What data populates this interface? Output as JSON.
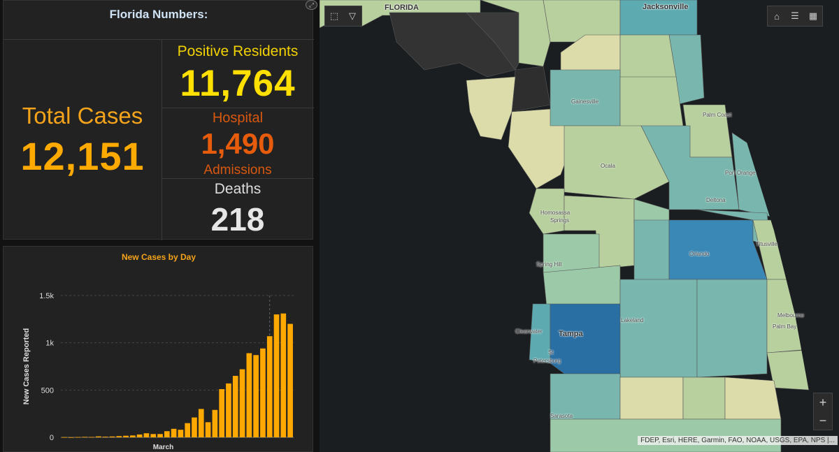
{
  "stats": {
    "title": "Florida Numbers:",
    "total_label": "Total Cases",
    "total_value": "12,151",
    "positive_label": "Positive Residents",
    "positive_value": "11,764",
    "hospital_label": "Hospital",
    "hospital_value": "1,490",
    "hospital_label2": "Admissions",
    "deaths_label": "Deaths",
    "deaths_value": "218"
  },
  "chart_data": {
    "type": "bar",
    "title": "New Cases by Day",
    "xlabel": "March",
    "ylabel": "New Cases Reported",
    "ylim": [
      0,
      1500
    ],
    "yticks": [
      "0",
      "500",
      "1k",
      "1.5k"
    ],
    "yticks_values": [
      0,
      500,
      1000,
      1500
    ],
    "values": [
      2,
      1,
      3,
      5,
      4,
      10,
      7,
      9,
      13,
      17,
      20,
      30,
      43,
      35,
      35,
      65,
      90,
      80,
      150,
      210,
      300,
      160,
      290,
      510,
      570,
      650,
      720,
      890,
      870,
      940,
      1070,
      1300,
      1310,
      1200
    ],
    "color": "#ffa800",
    "reference_line_index": 30
  },
  "map": {
    "labels": [
      {
        "text": "FLORIDA",
        "cls": "big"
      },
      {
        "text": "Jacksonville",
        "cls": "big"
      },
      {
        "text": "Gainesville",
        "cls": ""
      },
      {
        "text": "Palm Coast",
        "cls": ""
      },
      {
        "text": "Ocala",
        "cls": ""
      },
      {
        "text": "Port Orange",
        "cls": ""
      },
      {
        "text": "Deltona",
        "cls": ""
      },
      {
        "text": "Homosassa",
        "cls": ""
      },
      {
        "text": "Springs",
        "cls": ""
      },
      {
        "text": "Titusville",
        "cls": ""
      },
      {
        "text": "Orlando",
        "cls": ""
      },
      {
        "text": "Spring Hill",
        "cls": ""
      },
      {
        "text": "Lakeland",
        "cls": ""
      },
      {
        "text": "Melbourne",
        "cls": ""
      },
      {
        "text": "Palm Bay",
        "cls": ""
      },
      {
        "text": "Clearwater",
        "cls": ""
      },
      {
        "text": "Tampa",
        "cls": "big"
      },
      {
        "text": "St",
        "cls": ""
      },
      {
        "text": "Petersburg",
        "cls": ""
      },
      {
        "text": "Sarasota",
        "cls": ""
      }
    ],
    "attribution": "FDEP, Esri, HERE, Garmin, FAO, NOAA, USGS, EPA, NPS |...",
    "zoom_in": "+",
    "zoom_out": "−",
    "colors": {
      "dark": "#3a3a3a",
      "cream": "#dcdcaa",
      "light": "#b8cf9e",
      "mid": "#9cc9a7",
      "teal": "#79b7ae",
      "teal2": "#5eaab1",
      "blue": "#3a88b5",
      "deepblue": "#2a6fa3"
    }
  }
}
